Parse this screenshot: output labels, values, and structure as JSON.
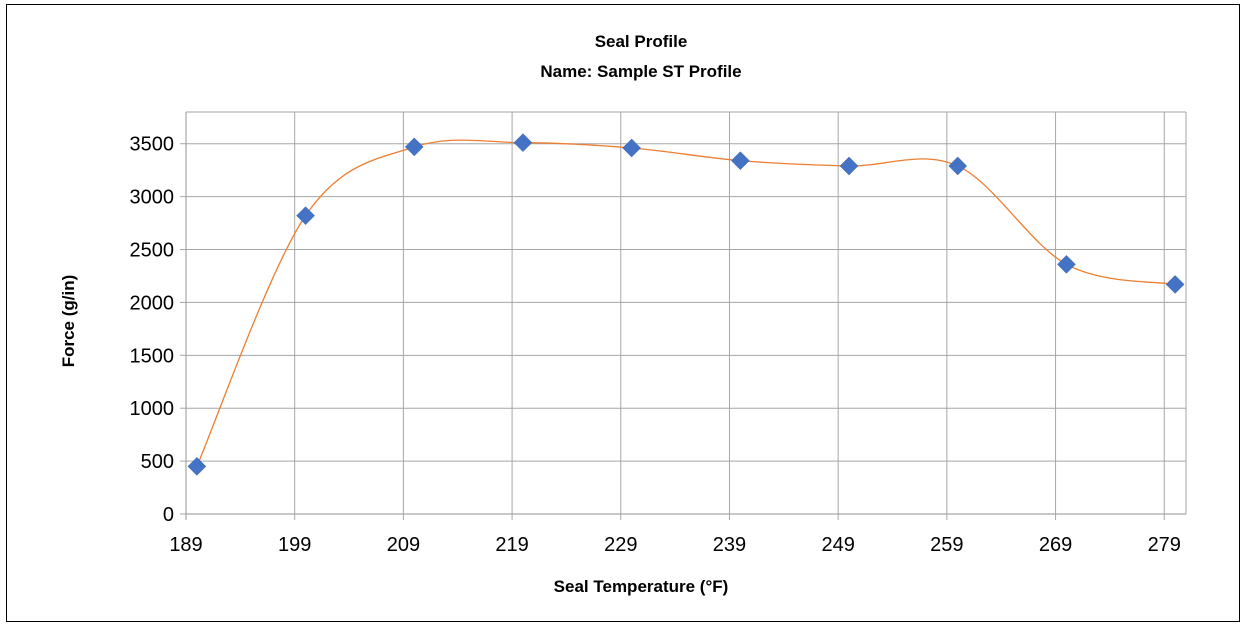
{
  "chart_data": {
    "type": "scatter",
    "title": "Seal Profile",
    "subtitle": "Name: Sample ST Profile",
    "xlabel": "Seal Temperature (°F)",
    "ylabel": "Force (g/in)",
    "xlim": [
      189,
      281
    ],
    "ylim": [
      0,
      3800
    ],
    "x_ticks": [
      189,
      199,
      209,
      219,
      229,
      239,
      249,
      259,
      269,
      279
    ],
    "y_ticks": [
      0,
      500,
      1000,
      1500,
      2000,
      2500,
      3000,
      3500
    ],
    "grid": true,
    "legend": "none",
    "smooth_line": true,
    "series": [
      {
        "x": [
          190,
          200,
          210,
          220,
          230,
          240,
          250,
          260,
          270,
          280
        ],
        "y": [
          450,
          2820,
          3470,
          3510,
          3460,
          3340,
          3290,
          3290,
          2360,
          2170
        ]
      }
    ],
    "colors": {
      "marker": "#4472C4",
      "line": "#ED7D31",
      "grid": "#A6A6A6"
    }
  }
}
